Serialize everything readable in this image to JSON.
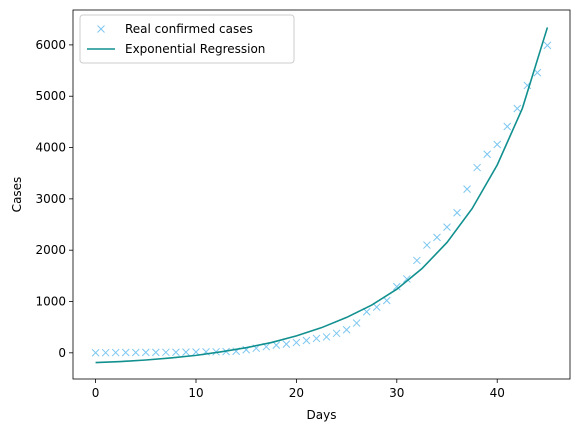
{
  "chart_data": {
    "type": "scatter",
    "xlabel": "Days",
    "ylabel": "Cases",
    "xlim": [
      -2.25,
      47.25
    ],
    "ylim": [
      -510,
      6680
    ],
    "xticks": [
      0,
      10,
      20,
      30,
      40
    ],
    "yticks": [
      0,
      1000,
      2000,
      3000,
      4000,
      5000,
      6000
    ],
    "grid": false,
    "legend_position": "upper-left",
    "series": [
      {
        "name": "Real confirmed cases",
        "type": "scatter",
        "marker": "x",
        "color": "#7cc7f0",
        "x": [
          0,
          1,
          2,
          3,
          4,
          5,
          6,
          7,
          8,
          9,
          10,
          11,
          12,
          13,
          14,
          15,
          16,
          17,
          18,
          19,
          20,
          21,
          22,
          23,
          24,
          25,
          26,
          27,
          28,
          29,
          30,
          31,
          32,
          33,
          34,
          35,
          36,
          37,
          38,
          39,
          40,
          41,
          42,
          43,
          44,
          45
        ],
        "y": [
          2,
          3,
          5,
          6,
          7,
          8,
          9,
          10,
          12,
          14,
          16,
          18,
          20,
          25,
          30,
          60,
          90,
          120,
          150,
          170,
          200,
          240,
          280,
          310,
          380,
          450,
          580,
          800,
          890,
          1020,
          1290,
          1440,
          1800,
          2100,
          2250,
          2450,
          2730,
          3190,
          3610,
          3870,
          4060,
          4410,
          4760,
          5210,
          5460,
          5990
        ]
      },
      {
        "name": "Exponential Regression",
        "type": "line",
        "color": "#11908f",
        "x": [
          0,
          2.5,
          5,
          7.5,
          10,
          12.5,
          15,
          17.5,
          20,
          22.5,
          25,
          27.5,
          30,
          32.5,
          35,
          37.5,
          40,
          42.5,
          45
        ],
        "y": [
          -190,
          -170,
          -140,
          -100,
          -50,
          20,
          100,
          200,
          330,
          490,
          690,
          930,
          1240,
          1640,
          2150,
          2810,
          3660,
          4760,
          6340
        ]
      }
    ]
  }
}
